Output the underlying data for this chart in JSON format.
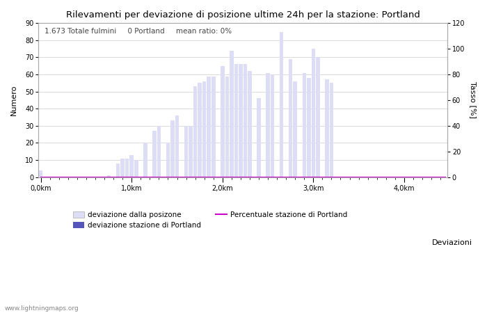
{
  "title": "Rilevamenti per deviazione di posizione ultime 24h per la stazione: Portland",
  "xlabel": "Deviazioni",
  "ylabel_left": "Numero",
  "ylabel_right": "Tasso [%]",
  "annotation": "1.673 Totale fulmini     0 Portland     mean ratio: 0%",
  "bar_color_light": "#ddddf5",
  "bar_color_dark": "#5555bb",
  "line_color": "#cc00cc",
  "watermark": "www.lightningmaps.org",
  "ylim_left": [
    0,
    90
  ],
  "ylim_right": [
    0,
    120
  ],
  "yticks_left": [
    0,
    10,
    20,
    30,
    40,
    50,
    60,
    70,
    80,
    90
  ],
  "yticks_right": [
    0,
    20,
    40,
    60,
    80,
    100,
    120
  ],
  "xtick_labels": [
    "0,0km",
    "1,0km",
    "2,0km",
    "3,0km",
    "4,0km"
  ],
  "xtick_positions": [
    0,
    20,
    40,
    60,
    80
  ],
  "n_bins": 90,
  "bar_values": [
    4,
    0,
    0,
    0,
    0,
    0,
    0,
    0,
    0,
    0,
    0,
    0,
    0,
    0,
    0,
    1,
    0,
    8,
    11,
    11,
    13,
    10,
    0,
    20,
    0,
    27,
    30,
    0,
    20,
    33,
    36,
    0,
    30,
    30,
    53,
    55,
    56,
    59,
    59,
    0,
    65,
    59,
    74,
    66,
    66,
    66,
    62,
    0,
    46,
    0,
    61,
    60,
    0,
    85,
    0,
    69,
    56,
    0,
    61,
    58,
    75,
    70,
    0,
    57,
    55,
    0,
    0,
    0,
    0,
    0,
    0,
    0,
    0,
    0,
    0,
    0,
    0,
    0,
    0,
    0,
    0,
    0,
    0,
    0,
    0,
    0,
    0,
    0,
    0,
    0
  ],
  "dark_bar_values": [
    0,
    0,
    0,
    0,
    0,
    0,
    0,
    0,
    0,
    0,
    0,
    0,
    0,
    0,
    0,
    0,
    0,
    0,
    0,
    0,
    0,
    0,
    0,
    0,
    0,
    0,
    0,
    0,
    0,
    0,
    0,
    0,
    0,
    0,
    0,
    0,
    0,
    0,
    0,
    0,
    0,
    0,
    0,
    0,
    0,
    0,
    0,
    0,
    0,
    0,
    0,
    0,
    0,
    0,
    0,
    0,
    0,
    0,
    0,
    0,
    0,
    0,
    0,
    0,
    0,
    0,
    0,
    0,
    0,
    0,
    0,
    0,
    0,
    0,
    0,
    0,
    0,
    0,
    0,
    0,
    0,
    0,
    0,
    0,
    0,
    0,
    0,
    0,
    0,
    0
  ],
  "figsize": [
    7.0,
    4.5
  ],
  "dpi": 100
}
